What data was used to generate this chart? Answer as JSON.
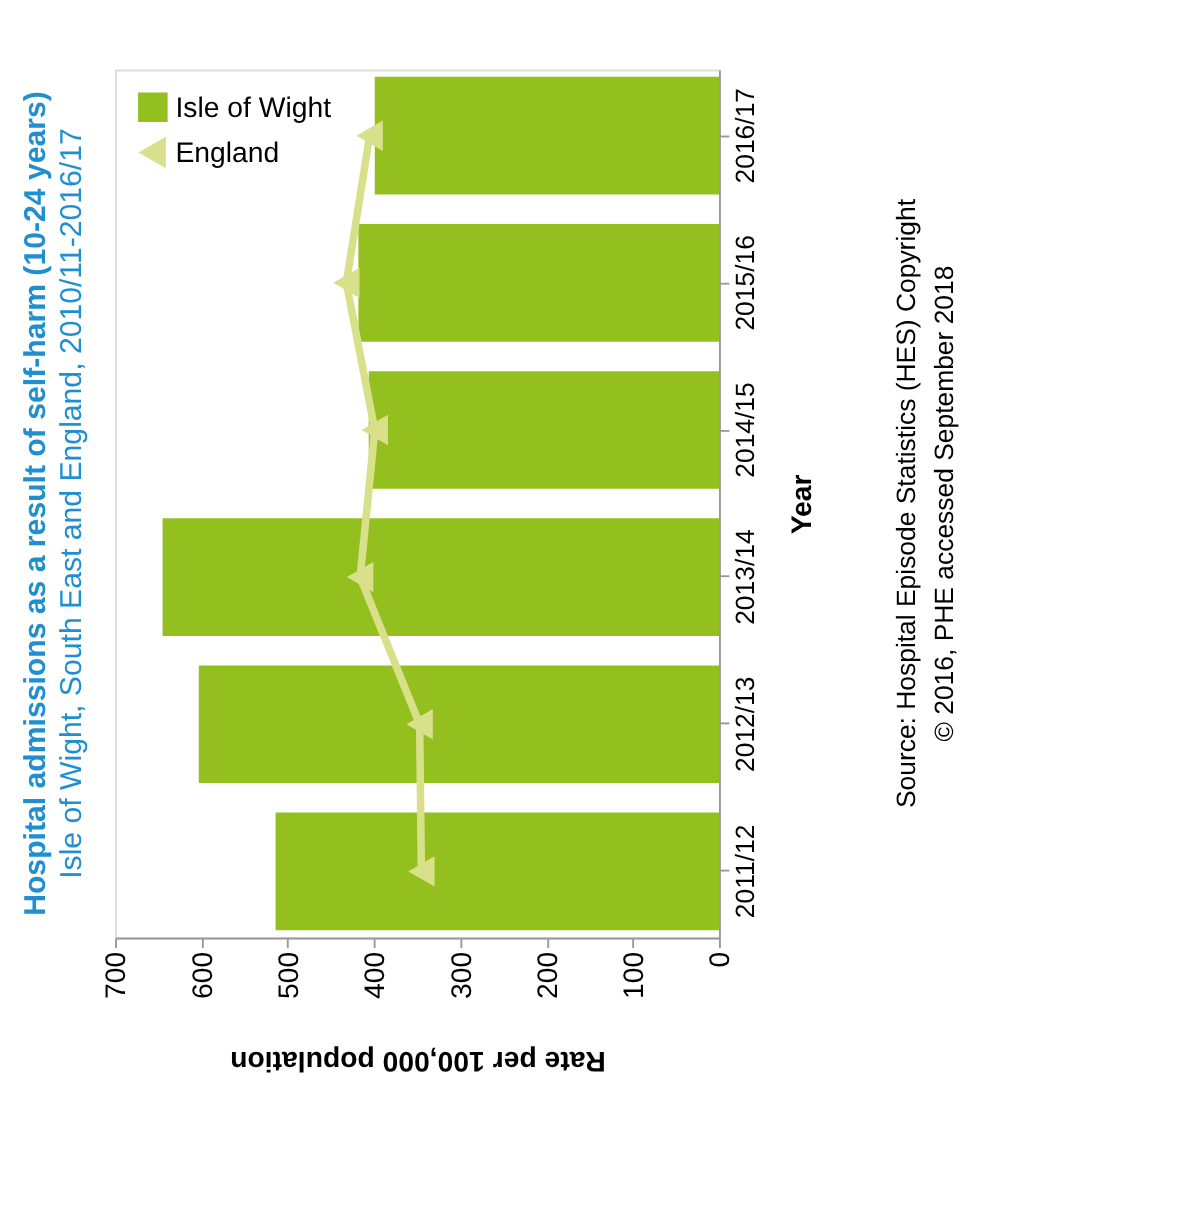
{
  "chart_data": {
    "type": "bar",
    "orientation": "horizontal",
    "title": "Hospital admissions as a result of self-harm (10-24 years)",
    "subtitle": "Isle of Wight, South East and England, 2010/11-2016/17",
    "xlabel": "Rate per 100,000 population",
    "ylabel": "Year",
    "categories": [
      "2016/17",
      "2015/16",
      "2014/15",
      "2013/14",
      "2012/13",
      "2011/12"
    ],
    "series": [
      {
        "name": "Isle of Wight",
        "color": "#93c01f",
        "values": [
          399,
          418,
          406,
          645,
          603,
          514
        ]
      },
      {
        "name": "England",
        "type": "line",
        "color": "#d9e08a",
        "marker": "triangle",
        "values": [
          405,
          432,
          399,
          416,
          347,
          345
        ]
      }
    ],
    "xlim": [
      700,
      0
    ],
    "xticks": [
      700,
      600,
      500,
      400,
      300,
      200,
      100,
      0
    ],
    "grid": false,
    "legend": "top left",
    "annotations": [
      "Source: Hospital Episode Statistics (HES) Copyright © 2016, PHE accessed September 2018"
    ]
  }
}
